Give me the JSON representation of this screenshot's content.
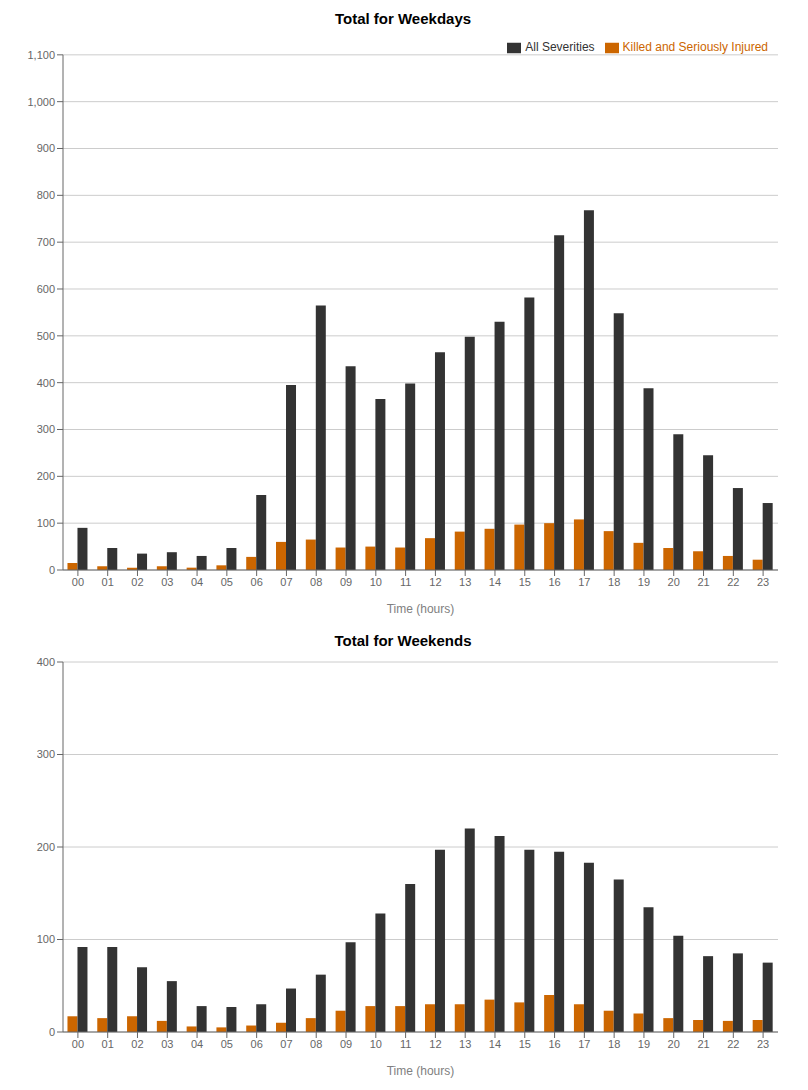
{
  "chart_data": [
    {
      "type": "bar",
      "title": "Total for Weekdays",
      "xlabel": "Time (hours)",
      "categories": [
        "00",
        "01",
        "02",
        "03",
        "04",
        "05",
        "06",
        "07",
        "08",
        "09",
        "10",
        "11",
        "12",
        "13",
        "14",
        "15",
        "16",
        "17",
        "18",
        "19",
        "20",
        "21",
        "22",
        "23"
      ],
      "series": [
        {
          "name": "Killed and Seriously Injured",
          "color": "#cc6600",
          "values": [
            15,
            8,
            5,
            8,
            5,
            10,
            28,
            60,
            65,
            48,
            50,
            48,
            68,
            82,
            88,
            97,
            100,
            108,
            83,
            58,
            47,
            40,
            30,
            22
          ]
        },
        {
          "name": "All Severities",
          "color": "#333333",
          "values": [
            90,
            47,
            35,
            38,
            30,
            47,
            160,
            395,
            565,
            435,
            365,
            398,
            465,
            498,
            530,
            582,
            715,
            768,
            548,
            388,
            290,
            245,
            175,
            143
          ]
        }
      ],
      "ylim": [
        0,
        1100
      ],
      "yticks": [
        0,
        100,
        200,
        300,
        400,
        500,
        600,
        700,
        800,
        900,
        {
          "value": 1000,
          "label": "1,000"
        },
        {
          "value": 1100,
          "label": "1,100"
        }
      ],
      "grid": true,
      "legend": "upper right"
    },
    {
      "type": "bar",
      "title": "Total for Weekends",
      "xlabel": "Time (hours)",
      "categories": [
        "00",
        "01",
        "02",
        "03",
        "04",
        "05",
        "06",
        "07",
        "08",
        "09",
        "10",
        "11",
        "12",
        "13",
        "14",
        "15",
        "16",
        "17",
        "18",
        "19",
        "20",
        "21",
        "22",
        "23"
      ],
      "series": [
        {
          "color": "#cc6600",
          "values": [
            17,
            15,
            17,
            12,
            6,
            5,
            7,
            10,
            15,
            23,
            28,
            28,
            30,
            30,
            35,
            32,
            40,
            30,
            23,
            20,
            15,
            13,
            12,
            13
          ]
        },
        {
          "color": "#333333",
          "values": [
            92,
            92,
            70,
            55,
            28,
            27,
            30,
            47,
            62,
            97,
            128,
            160,
            197,
            220,
            212,
            197,
            195,
            183,
            165,
            135,
            104,
            82,
            85,
            75
          ]
        }
      ],
      "ylim": [
        0,
        400
      ],
      "yticks": [
        0,
        100,
        200,
        300,
        400
      ],
      "grid": true
    }
  ]
}
